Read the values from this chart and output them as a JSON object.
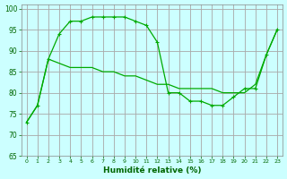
{
  "curve1_x": [
    0,
    1,
    2,
    3,
    4,
    5,
    6,
    7,
    8,
    9,
    10,
    11,
    12,
    13,
    14,
    15,
    16,
    17,
    18,
    19,
    20,
    21,
    22,
    23
  ],
  "curve1_y": [
    73,
    77,
    88,
    87,
    86,
    86,
    86,
    85,
    85,
    84,
    84,
    83,
    82,
    82,
    81,
    81,
    81,
    81,
    80,
    80,
    80,
    82,
    89,
    95
  ],
  "curve2_x": [
    0,
    1,
    2,
    3,
    4,
    5,
    6,
    7,
    8,
    9,
    10,
    11,
    12,
    13,
    14,
    15,
    16,
    17,
    18,
    19,
    20,
    21,
    22,
    23
  ],
  "curve2_y": [
    73,
    77,
    88,
    94,
    97,
    97,
    98,
    98,
    98,
    98,
    97,
    96,
    92,
    80,
    80,
    78,
    78,
    77,
    77,
    79,
    81,
    81,
    89,
    95
  ],
  "line_color": "#00aa00",
  "bg_color": "#ccffff",
  "grid_major_color": "#aaaaaa",
  "grid_minor_color": "#cccccc",
  "xlabel": "Humidité relative (%)",
  "ylim": [
    65,
    101
  ],
  "xlim": [
    -0.5,
    23.5
  ],
  "yticks": [
    65,
    70,
    75,
    80,
    85,
    90,
    95,
    100
  ],
  "xticks": [
    0,
    1,
    2,
    3,
    4,
    5,
    6,
    7,
    8,
    9,
    10,
    11,
    12,
    13,
    14,
    15,
    16,
    17,
    18,
    19,
    20,
    21,
    22,
    23
  ],
  "tick_color": "#006600",
  "xlabel_color": "#006600"
}
